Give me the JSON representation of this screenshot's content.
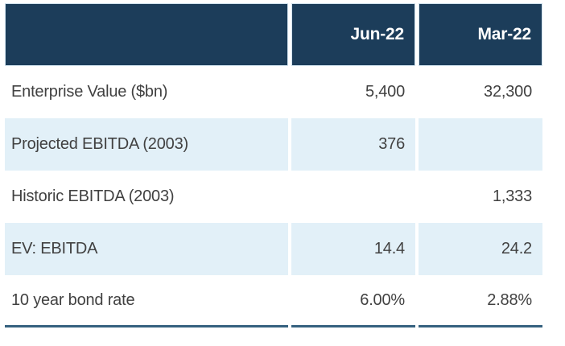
{
  "chart_data": {
    "type": "table",
    "columns": [
      "",
      "Jun-22",
      "Mar-22"
    ],
    "rows": [
      [
        "Enterprise Value ($bn)",
        "5,400",
        "32,300"
      ],
      [
        "Projected EBITDA (2003)",
        "376",
        ""
      ],
      [
        "Historic EBITDA (2003)",
        "",
        "1,333"
      ],
      [
        "EV: EBITDA",
        "14.4",
        "24.2"
      ],
      [
        "10 year bond rate",
        "6.00%",
        "2.88%"
      ]
    ],
    "layout": {
      "header_align": "right",
      "value_align": "right",
      "label_align": "left",
      "alternating_rows": "rows 2 and 4 shaded light blue",
      "column_gutters": "white 4px vertical separators",
      "bottom_rule": "3px steel-blue line under last row"
    }
  },
  "colors": {
    "header_bg": "#1c3d5a",
    "header_text": "#ffffff",
    "header_cell_border": "#cfe1ed",
    "alt_row_bg": "#e2f0f8",
    "body_text": "#414141",
    "bottom_border": "#35617f",
    "separator": "#ffffff"
  }
}
